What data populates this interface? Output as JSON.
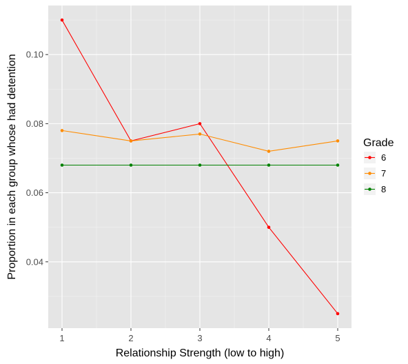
{
  "chart_data": {
    "type": "line",
    "title": "",
    "xlabel": "Relationship Strength (low to high)",
    "ylabel": "Proportion in each group whose had detention",
    "x": [
      1,
      2,
      3,
      4,
      5
    ],
    "xticks": [
      "1",
      "2",
      "3",
      "4",
      "5"
    ],
    "xlim": [
      0.8,
      5.2
    ],
    "yticks": [
      0.04,
      0.06,
      0.08,
      0.1
    ],
    "ytick_labels": [
      "0.04",
      "0.06",
      "0.08",
      "0.10"
    ],
    "ylim": [
      0.0208,
      0.1142
    ],
    "grid": true,
    "legend_title": "Grade",
    "legend_position": "right",
    "background": "#e5e5e5",
    "series": [
      {
        "name": "6",
        "color": "#ff0000",
        "values": [
          0.11,
          0.075,
          0.08,
          0.05,
          0.025
        ]
      },
      {
        "name": "7",
        "color": "#ff8c00",
        "values": [
          0.078,
          0.075,
          0.077,
          0.072,
          0.075
        ]
      },
      {
        "name": "8",
        "color": "#008000",
        "values": [
          0.068,
          0.068,
          0.068,
          0.068,
          0.068
        ]
      }
    ]
  }
}
